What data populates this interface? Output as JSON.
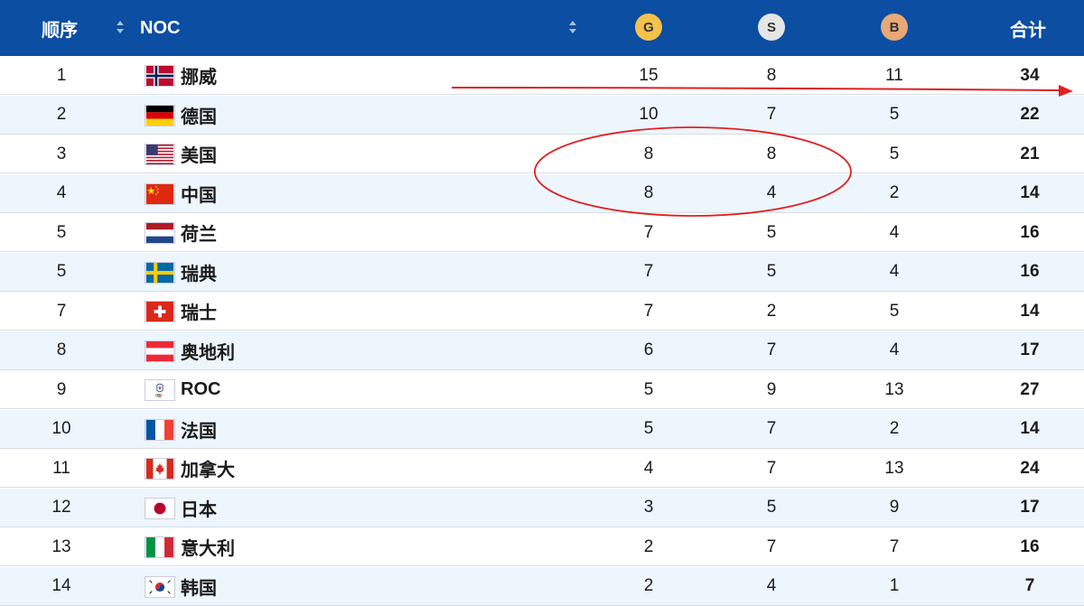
{
  "header": {
    "rank_label": "顺序",
    "noc_label": "NOC",
    "gold_label": "G",
    "silver_label": "S",
    "bronze_label": "B",
    "total_label": "合计",
    "colors": {
      "bar": "#0b4ea2",
      "gold": "#f2c24d",
      "silver": "#e6e6e6",
      "bronze": "#e9a878"
    }
  },
  "rows": [
    {
      "rank": "1",
      "flag": "norway-flag",
      "name": "挪威",
      "gold": "15",
      "silver": "8",
      "bronze": "11",
      "total": "34"
    },
    {
      "rank": "2",
      "flag": "germany-flag",
      "name": "德国",
      "gold": "10",
      "silver": "7",
      "bronze": "5",
      "total": "22"
    },
    {
      "rank": "3",
      "flag": "usa-flag",
      "name": "美国",
      "gold": "8",
      "silver": "8",
      "bronze": "5",
      "total": "21"
    },
    {
      "rank": "4",
      "flag": "china-flag",
      "name": "中国",
      "gold": "8",
      "silver": "4",
      "bronze": "2",
      "total": "14"
    },
    {
      "rank": "5",
      "flag": "netherlands-flag",
      "name": "荷兰",
      "gold": "7",
      "silver": "5",
      "bronze": "4",
      "total": "16"
    },
    {
      "rank": "5",
      "flag": "sweden-flag",
      "name": "瑞典",
      "gold": "7",
      "silver": "5",
      "bronze": "4",
      "total": "16"
    },
    {
      "rank": "7",
      "flag": "switzerland-flag",
      "name": "瑞士",
      "gold": "7",
      "silver": "2",
      "bronze": "5",
      "total": "14"
    },
    {
      "rank": "8",
      "flag": "austria-flag",
      "name": "奥地利",
      "gold": "6",
      "silver": "7",
      "bronze": "4",
      "total": "17"
    },
    {
      "rank": "9",
      "flag": "roc-flag",
      "name": "ROC",
      "gold": "5",
      "silver": "9",
      "bronze": "13",
      "total": "27"
    },
    {
      "rank": "10",
      "flag": "france-flag",
      "name": "法国",
      "gold": "5",
      "silver": "7",
      "bronze": "2",
      "total": "14"
    },
    {
      "rank": "11",
      "flag": "canada-flag",
      "name": "加拿大",
      "gold": "4",
      "silver": "7",
      "bronze": "13",
      "total": "24"
    },
    {
      "rank": "12",
      "flag": "japan-flag",
      "name": "日本",
      "gold": "3",
      "silver": "5",
      "bronze": "9",
      "total": "17"
    },
    {
      "rank": "13",
      "flag": "italy-flag",
      "name": "意大利",
      "gold": "2",
      "silver": "7",
      "bronze": "7",
      "total": "16"
    },
    {
      "rank": "14",
      "flag": "korea-flag",
      "name": "韩国",
      "gold": "2",
      "silver": "4",
      "bronze": "1",
      "total": "7"
    }
  ],
  "annotations": {
    "color": "#e02020",
    "arrow": "red-arrow",
    "ellipse": "red-ellipse"
  }
}
